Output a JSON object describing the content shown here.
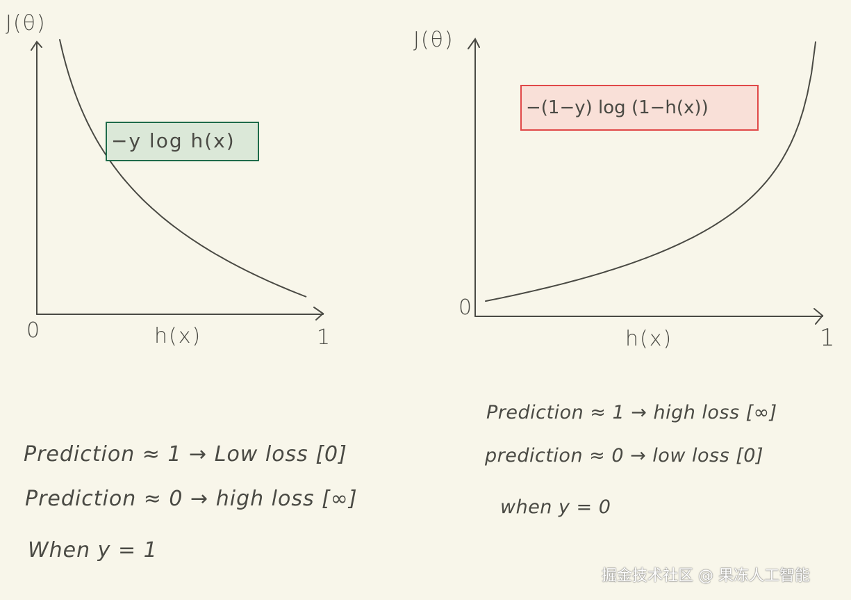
{
  "colors": {
    "background": "#f8f6ea",
    "ink": "#4a4a44",
    "green_box_fill": "#dbe8d8",
    "green_box_stroke": "#1e6b4a",
    "red_box_fill": "#f9e0d8",
    "red_box_stroke": "#e04848"
  },
  "left_plot": {
    "y_label": "J(θ)",
    "x_label": "h(x)",
    "origin_label": "0",
    "x_end_label": "1",
    "formula": "−y log h(x)",
    "curve": {
      "function": "-log(h)",
      "h_range": [
        0.08,
        0.94
      ]
    },
    "notes": [
      "Prediction ≈ 1 → Low loss [0]",
      "Prediction ≈ 0 → high loss [∞]",
      "When y = 1"
    ]
  },
  "right_plot": {
    "y_label": "J(θ)",
    "x_label": "h(x)",
    "origin_label": "0",
    "x_end_label": "1",
    "formula": "−(1−y) log (1−h(x))",
    "curve": {
      "function": "-log(1-h)",
      "h_range": [
        0.03,
        0.98
      ]
    },
    "notes": [
      "Prediction ≈ 1 → high loss [∞]",
      "prediction ≈ 0 → low loss [0]",
      "when y = 0"
    ]
  },
  "watermark": "掘金技术社区 @ 果冻人工智能"
}
